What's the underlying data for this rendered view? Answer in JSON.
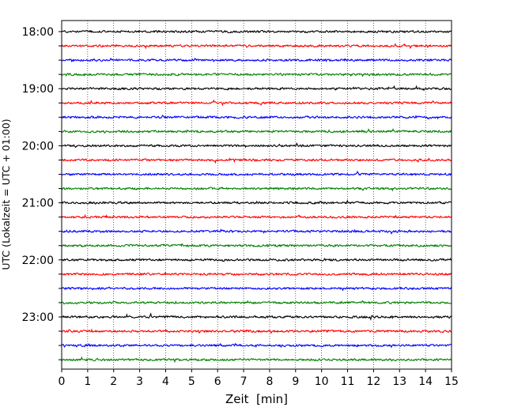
{
  "chart_data": {
    "type": "line",
    "title": "",
    "xlabel": "Zeit  [min]",
    "ylabel": "UTC (Lokalzeit = UTC + 01:00)",
    "xlim": [
      0,
      15
    ],
    "x_ticks": [
      "0",
      "1",
      "2",
      "3",
      "4",
      "5",
      "6",
      "7",
      "8",
      "9",
      "10",
      "11",
      "12",
      "13",
      "14",
      "15"
    ],
    "y_tick_labels": [
      "18:00",
      "19:00",
      "20:00",
      "21:00",
      "22:00",
      "23:00"
    ],
    "grid": "vertical dotted",
    "trace_interval_minutes": 15,
    "trace_start": "18:00",
    "traces": [
      {
        "start": "18:00",
        "color": "#000000"
      },
      {
        "start": "18:15",
        "color": "#ff0000"
      },
      {
        "start": "18:30",
        "color": "#0000ff"
      },
      {
        "start": "18:45",
        "color": "#008000"
      },
      {
        "start": "19:00",
        "color": "#000000"
      },
      {
        "start": "19:15",
        "color": "#ff0000"
      },
      {
        "start": "19:30",
        "color": "#0000ff"
      },
      {
        "start": "19:45",
        "color": "#008000"
      },
      {
        "start": "20:00",
        "color": "#000000"
      },
      {
        "start": "20:15",
        "color": "#ff0000"
      },
      {
        "start": "20:30",
        "color": "#0000ff"
      },
      {
        "start": "20:45",
        "color": "#008000"
      },
      {
        "start": "21:00",
        "color": "#000000"
      },
      {
        "start": "21:15",
        "color": "#ff0000"
      },
      {
        "start": "21:30",
        "color": "#0000ff"
      },
      {
        "start": "21:45",
        "color": "#008000"
      },
      {
        "start": "22:00",
        "color": "#000000"
      },
      {
        "start": "22:15",
        "color": "#ff0000"
      },
      {
        "start": "22:30",
        "color": "#0000ff"
      },
      {
        "start": "22:45",
        "color": "#008000"
      },
      {
        "start": "23:00",
        "color": "#000000"
      },
      {
        "start": "23:15",
        "color": "#ff0000"
      },
      {
        "start": "23:30",
        "color": "#0000ff"
      },
      {
        "start": "23:45",
        "color": "#008000"
      }
    ]
  }
}
